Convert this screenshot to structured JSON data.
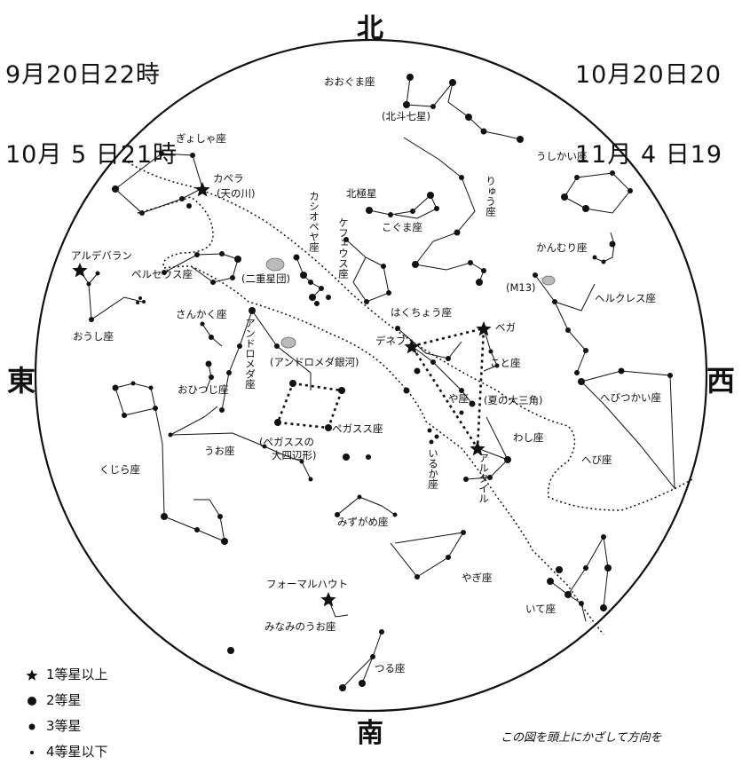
{
  "dates_left": [
    "9月20日22時",
    "10月 5 日21時"
  ],
  "dates_right": [
    "10月20日20",
    "11月 4 日19"
  ],
  "directions": {
    "north": "北",
    "south": "南",
    "east": "東",
    "west": "西"
  },
  "legend": [
    {
      "symbol": "star",
      "label": "1等星以上"
    },
    {
      "symbol": "big-dot",
      "label": "2等星"
    },
    {
      "symbol": "mid-dot",
      "label": "3等星"
    },
    {
      "symbol": "small-dot",
      "label": "4等星以下"
    }
  ],
  "footnote": "この図を頭上にかざして方向を",
  "labels": {
    "ooguma": "おおぐま座",
    "hokuto": "(北斗七星)",
    "gyosha": "ぎょしゃ座",
    "capella": "カペラ",
    "amanogawa": "(天の川)",
    "ushikai": "うしかい座",
    "hokkyoku": "北極星",
    "koguma": "こぐま座",
    "ryu": "りゅう座",
    "kanmuri": "かんむり座",
    "aldebaran": "アルデバラン",
    "perseus": "ペルセウス座",
    "nijuu": "(二重星団)",
    "m13": "(M13)",
    "hercules": "ヘルクレス座",
    "oushi": "おうし座",
    "sankaku": "さんかく座",
    "hakucho": "はくちょう座",
    "vega": "ベガ",
    "deneb": "デネブ",
    "kotoza": "こと座",
    "andromeda_galaxy": "(アンドロメダ銀河)",
    "ohitsuji": "おひつじ座",
    "yaza": "や座",
    "summer_triangle": "(夏の大三角)",
    "hebitsukai": "へびつかい座",
    "pegasus": "ペガスス座",
    "pegasus_square_1": "(ペガススの",
    "pegasus_square_2": "大四辺形)",
    "washi": "わし座",
    "uoza": "うお座",
    "hebi": "へび座",
    "kujira": "くじら座",
    "mizugame": "みずがめ座",
    "yagi": "やぎ座",
    "fomalhaut": "フォーマルハウト",
    "minaminouo": "みなみのうお座",
    "ite": "いて座",
    "tsuru": "つる座",
    "cassiopeia": "カシオペヤ座",
    "cepheus": "ケフェウス座",
    "andromeda": "アンドロメダ座",
    "iruka": "いるか座",
    "altair": "アルタイル"
  }
}
